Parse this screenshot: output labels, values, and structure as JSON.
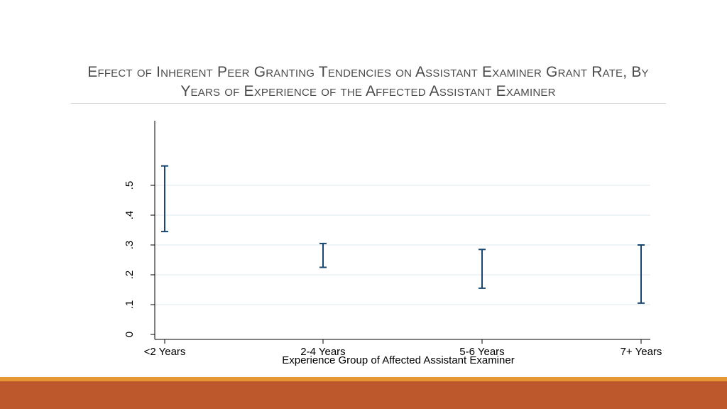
{
  "slide": {
    "title": "Effect of Inherent Peer Granting Tendencies on Assistant Examiner Grant Rate, By Years of Experience of the Affected Assistant Examiner"
  },
  "theme": {
    "accent": "#bc582b",
    "accent_stripe": "#e59635",
    "bar_color": "#1a476f",
    "grid_color": "#eaf2f3"
  },
  "chart_data": {
    "type": "errorbar",
    "title": "Effect of Inherent Peer Granting Tendencies on Assistant Examiner Grant Rate, By Years of Experience of the Affected Assistant Examiner",
    "xlabel": "Experience Group of Affected Assistant Examiner",
    "ylabel": "",
    "categories": [
      "<2 Years",
      "2-4 Years",
      "5-6 Years",
      "7+ Years"
    ],
    "lower": [
      0.345,
      0.225,
      0.155,
      0.105
    ],
    "upper": [
      0.565,
      0.305,
      0.285,
      0.3
    ],
    "ylim": [
      0,
      0.7
    ],
    "yticks": [
      0,
      0.1,
      0.2,
      0.3,
      0.4,
      0.5
    ],
    "ytick_labels": [
      "0",
      ".1",
      ".2",
      ".3",
      ".4",
      ".5"
    ],
    "grid": true
  }
}
